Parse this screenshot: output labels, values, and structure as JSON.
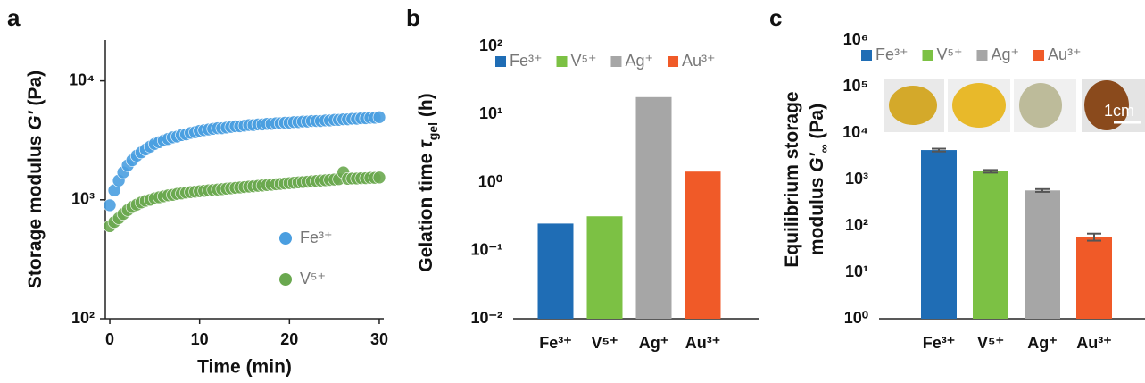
{
  "panel_labels": [
    "a",
    "b",
    "c"
  ],
  "chart_data": [
    {
      "type": "scatter",
      "ylabel": [
        [
          "Storage modulus ",
          {
            "text": "G′",
            "style": "italic"
          },
          " (Pa)"
        ]
      ],
      "xlabel": "Time (min)",
      "x": [
        0,
        0.5,
        1,
        1.5,
        2,
        2.5,
        3,
        3.5,
        4,
        4.5,
        5,
        5.5,
        6,
        6.5,
        7,
        7.5,
        8,
        8.5,
        9,
        9.5,
        10,
        10.5,
        11,
        11.5,
        12,
        12.5,
        13,
        13.5,
        14,
        14.5,
        15,
        15.5,
        16,
        16.5,
        17,
        17.5,
        18,
        18.5,
        19,
        19.5,
        20,
        20.5,
        21,
        21.5,
        22,
        22.5,
        23,
        23.5,
        24,
        24.5,
        25,
        25.5,
        26,
        26.5,
        27,
        27.5,
        28,
        28.5,
        29,
        29.5,
        30
      ],
      "series": [
        {
          "name": "Fe³⁺",
          "color": "#4a9ee0",
          "values": [
            900,
            1200,
            1450,
            1700,
            1950,
            2150,
            2350,
            2500,
            2650,
            2800,
            2950,
            3050,
            3150,
            3250,
            3350,
            3400,
            3500,
            3550,
            3650,
            3700,
            3800,
            3850,
            3900,
            3950,
            4000,
            4000,
            4050,
            4100,
            4150,
            4150,
            4200,
            4250,
            4250,
            4300,
            4300,
            4350,
            4350,
            4400,
            4400,
            4450,
            4450,
            4500,
            4500,
            4550,
            4550,
            4600,
            4600,
            4600,
            4650,
            4650,
            4700,
            4700,
            4750,
            4750,
            4800,
            4800,
            4850,
            4850,
            4900,
            4900,
            4950
          ]
        },
        {
          "name": "V⁵⁺",
          "color": "#6aa84f",
          "values": [
            600,
            650,
            700,
            760,
            820,
            870,
            910,
            950,
            980,
            1000,
            1030,
            1050,
            1070,
            1090,
            1100,
            1120,
            1130,
            1150,
            1160,
            1170,
            1180,
            1190,
            1200,
            1210,
            1220,
            1230,
            1240,
            1250,
            1260,
            1270,
            1280,
            1290,
            1300,
            1310,
            1320,
            1330,
            1340,
            1350,
            1360,
            1370,
            1380,
            1390,
            1400,
            1410,
            1420,
            1430,
            1440,
            1450,
            1460,
            1470,
            1480,
            1490,
            1700,
            1500,
            1510,
            1510,
            1520,
            1520,
            1530,
            1530,
            1540
          ]
        }
      ],
      "xlim": [
        -0.5,
        30.5
      ],
      "xticks": [
        0,
        10,
        20,
        30
      ],
      "ylim": [
        100,
        22000
      ],
      "log_y": true,
      "yticks": [
        {
          "value": 100,
          "label": "10²"
        },
        {
          "value": 1000,
          "label": "10³"
        },
        {
          "value": 10000,
          "label": "10⁴"
        }
      ],
      "legend": "lower right"
    },
    {
      "type": "bar",
      "ylabel": [
        [
          "Gelation time ",
          {
            "text": "τ",
            "style": "italic"
          },
          {
            "text": "gel",
            "style": "sub"
          },
          " (h)"
        ]
      ],
      "categories": [
        "Fe³⁺",
        "V⁵⁺",
        "Ag⁺",
        "Au³⁺"
      ],
      "values": [
        0.25,
        0.32,
        18,
        1.45
      ],
      "colors": [
        "#1f6db5",
        "#7cc144",
        "#a6a6a6",
        "#f05a28"
      ],
      "ylim": [
        0.01,
        100
      ],
      "log_y": true,
      "yticks": [
        {
          "value": 0.01,
          "label": "10⁻²"
        },
        {
          "value": 0.1,
          "label": "10⁻¹"
        },
        {
          "value": 1,
          "label": "10⁰"
        },
        {
          "value": 10,
          "label": "10¹"
        },
        {
          "value": 100,
          "label": "10²"
        }
      ],
      "legend": "top"
    },
    {
      "type": "bar",
      "ylabel": [
        [
          "Equilibrium storage"
        ],
        [
          "modulus ",
          {
            "text": "G′",
            "style": "italic"
          },
          {
            "text": "∞",
            "style": "sub"
          },
          " (Pa)"
        ]
      ],
      "categories": [
        "Fe³⁺",
        "V⁵⁺",
        "Ag⁺",
        "Au³⁺"
      ],
      "values": [
        4300,
        1500,
        580,
        58
      ],
      "errors": [
        300,
        100,
        40,
        10
      ],
      "colors": [
        "#1f6db5",
        "#7cc144",
        "#a6a6a6",
        "#f05a28"
      ],
      "ylim": [
        1,
        1000000
      ],
      "log_y": true,
      "yticks": [
        {
          "value": 1,
          "label": "10⁰"
        },
        {
          "value": 10,
          "label": "10¹"
        },
        {
          "value": 100,
          "label": "10²"
        },
        {
          "value": 1000,
          "label": "10³"
        },
        {
          "value": 10000,
          "label": "10⁴"
        },
        {
          "value": 100000,
          "label": "10⁵"
        },
        {
          "value": 1000000,
          "label": "10⁶"
        }
      ],
      "legend": "top",
      "inset_scale_label": "1cm"
    }
  ]
}
